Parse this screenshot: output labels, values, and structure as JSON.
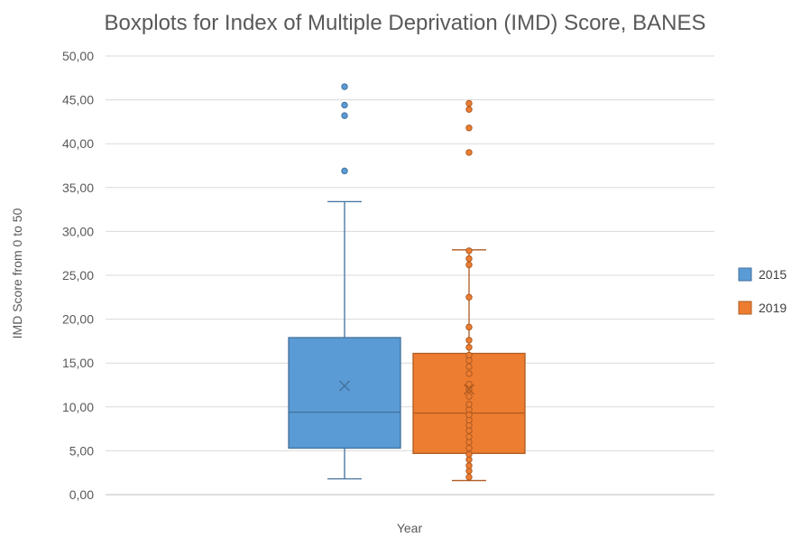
{
  "chart_data": {
    "type": "boxplot",
    "title": "Boxplots for Index of Multiple Deprivation (IMD) Score, BANES",
    "xlabel": "Year",
    "ylabel": "IMD Score from 0 to 50",
    "ylim": [
      0,
      50
    ],
    "y_ticks": [
      "0,00",
      "5,00",
      "10,00",
      "15,00",
      "20,00",
      "25,00",
      "30,00",
      "35,00",
      "40,00",
      "45,00",
      "50,00"
    ],
    "y_tick_values": [
      0,
      5,
      10,
      15,
      20,
      25,
      30,
      35,
      40,
      45,
      50
    ],
    "grid": "horizontal",
    "legend_position": "right",
    "series": [
      {
        "name": "2015",
        "color": "#5b9bd5",
        "edge_color": "#41719c",
        "min": 1.8,
        "q1": 5.3,
        "median": 9.4,
        "q3": 17.9,
        "max": 33.4,
        "mean": 12.4,
        "outliers": [
          36.9,
          43.2,
          44.4,
          46.5
        ],
        "points": []
      },
      {
        "name": "2019",
        "color": "#ed7d31",
        "edge_color": "#ae5a21",
        "min": 1.6,
        "q1": 4.7,
        "median": 9.3,
        "q3": 16.1,
        "max": 27.9,
        "mean": 12.0,
        "outliers": [
          39.0,
          41.8,
          43.9,
          44.6
        ],
        "points": [
          2.0,
          2.7,
          3.3,
          4.0,
          4.6,
          5.3,
          6.0,
          6.6,
          7.3,
          7.9,
          8.5,
          9.1,
          9.7,
          10.3,
          11.2,
          12.0,
          12.6,
          13.8,
          14.6,
          15.3,
          15.9,
          16.8,
          17.6,
          19.1,
          22.5,
          26.2,
          26.9,
          27.8
        ]
      }
    ]
  }
}
